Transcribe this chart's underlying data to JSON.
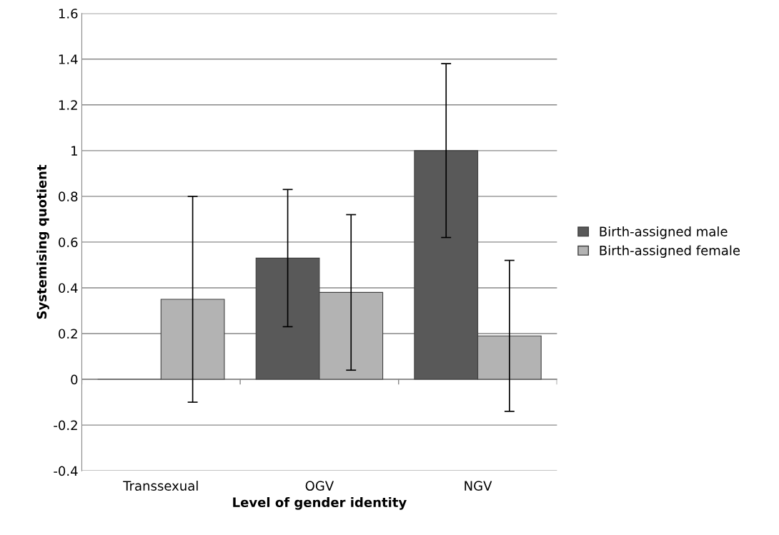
{
  "chart_data": {
    "type": "bar",
    "xlabel": "Level of gender identity",
    "ylabel": "Systemising quotient",
    "categories": [
      "Transsexual",
      "OGV",
      "NGV"
    ],
    "series": [
      {
        "name": "Birth-assigned male",
        "color": "#595959",
        "values": [
          0,
          0.53,
          1
        ],
        "errors": [
          null,
          0.3,
          0.38
        ]
      },
      {
        "name": "Birth-assigned female",
        "color": "#b3b3b3",
        "values": [
          0.35,
          0.38,
          0.19
        ],
        "errors": [
          0.45,
          0.34,
          0.33
        ]
      }
    ],
    "ylim": [
      -0.4,
      1.6
    ],
    "yticks": [
      -0.4,
      -0.2,
      0,
      0.2,
      0.4,
      0.6,
      0.8,
      1,
      1.2,
      1.4,
      1.6
    ],
    "grid": "y",
    "legend": "right"
  }
}
